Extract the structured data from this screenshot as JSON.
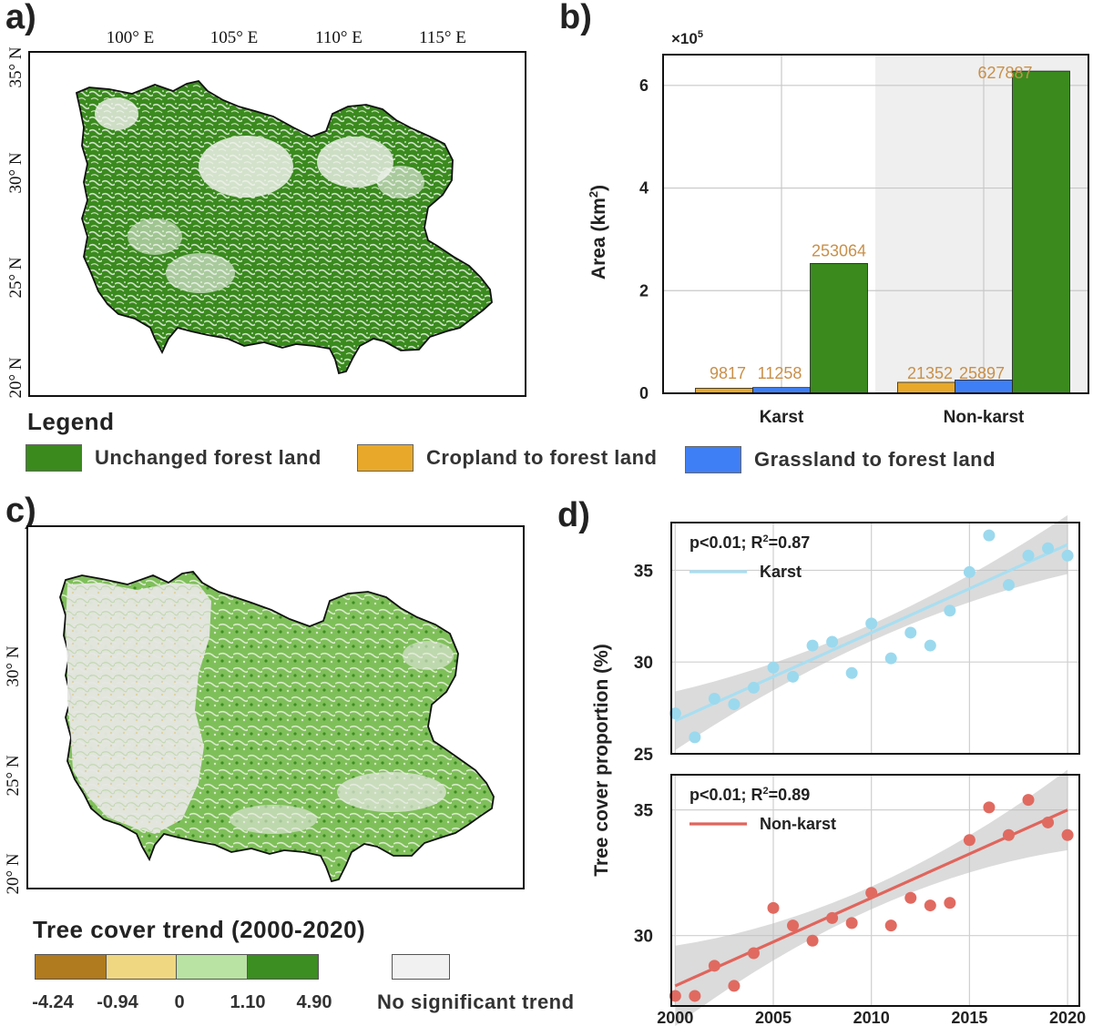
{
  "panels": {
    "a": "a)",
    "b": "b)",
    "c": "c)",
    "d": "d)"
  },
  "maps": {
    "longitudes": [
      "100° E",
      "105° E",
      "110° E",
      "115° E"
    ],
    "map_a_latitudes": [
      "35° N",
      "30° N",
      "25° N",
      "20° N"
    ],
    "map_c_latitudes": [
      "30° N",
      "25° N",
      "20° N"
    ]
  },
  "legend": {
    "title": "Legend",
    "items": [
      {
        "label": "Unchanged forest land",
        "color": "#3a8a1e"
      },
      {
        "label": "Cropland to forest land",
        "color": "#e8a92a"
      },
      {
        "label": "Grassland to forest land",
        "color": "#3f7ff5"
      }
    ]
  },
  "trend_legend": {
    "title": "Tree cover trend (2000-2020)",
    "colors": [
      "#b07a1e",
      "#efd782",
      "#b9e3a2",
      "#3c8d22"
    ],
    "ticks": [
      "-4.24",
      "-0.94",
      "0",
      "1.10",
      "4.90"
    ],
    "nosig_color": "#f1f1f1",
    "nosig_label": "No significant trend"
  },
  "chart_data": [
    {
      "panel": "b",
      "type": "bar",
      "categories": [
        "Karst",
        "Non-karst"
      ],
      "series": [
        {
          "name": "Cropland to forest land",
          "values": [
            9817,
            21352
          ],
          "color": "#e8a92a"
        },
        {
          "name": "Grassland to forest land",
          "values": [
            11258,
            25897
          ],
          "color": "#3f7ff5"
        },
        {
          "name": "Unchanged forest land",
          "values": [
            253064,
            627887
          ],
          "color": "#3a8a1e"
        }
      ],
      "ylabel": "Area (km²)",
      "ylabel_main": "Area (km",
      "ylabel_sup": "2",
      "ylabel_end": ")",
      "y_multiplier": "×10",
      "y_multiplier_exp": "5",
      "yticks": [
        "0",
        "2",
        "4",
        "6"
      ],
      "ylim": [
        0,
        660000
      ],
      "label_color": "#c8904a",
      "grid": true
    },
    {
      "panel": "d",
      "type": "scatter",
      "ylabel": "Tree cover proportion (%)",
      "xticks": [
        "2000",
        "2005",
        "2010",
        "2015",
        "2020"
      ],
      "xlim": [
        1999.8,
        2020.6
      ],
      "grid": true,
      "subplots": [
        {
          "name": "Karst",
          "stats_main": "p<0.01; R",
          "stats_sup": "2",
          "stats_end": "=0.87",
          "color": "#9bd9ee",
          "line_color": "#a9def0",
          "ylim": [
            25,
            37.6
          ],
          "yticks": [
            "25",
            "30",
            "35"
          ],
          "x": [
            2000,
            2001,
            2002,
            2003,
            2004,
            2005,
            2006,
            2007,
            2008,
            2009,
            2010,
            2011,
            2012,
            2013,
            2014,
            2015,
            2016,
            2017,
            2018,
            2019,
            2020
          ],
          "y": [
            27.2,
            25.9,
            28.0,
            27.7,
            28.6,
            29.7,
            29.2,
            30.9,
            31.1,
            29.4,
            32.1,
            30.2,
            31.6,
            30.9,
            32.8,
            34.9,
            36.9,
            34.2,
            35.8,
            36.2,
            35.8
          ],
          "fit": [
            26.8,
            36.4
          ]
        },
        {
          "name": "Non-karst",
          "stats_main": "p<0.01; R",
          "stats_sup": "2",
          "stats_end": "=0.89",
          "color": "#e06a60",
          "line_color": "#e0655c",
          "ylim": [
            27.2,
            36.4
          ],
          "yticks": [
            "30",
            "35"
          ],
          "x": [
            2000,
            2001,
            2002,
            2003,
            2004,
            2005,
            2006,
            2007,
            2008,
            2009,
            2010,
            2011,
            2012,
            2013,
            2014,
            2015,
            2016,
            2017,
            2018,
            2019,
            2020
          ],
          "y": [
            27.6,
            27.6,
            28.8,
            28.0,
            29.3,
            31.1,
            30.4,
            29.8,
            30.7,
            30.5,
            31.7,
            30.4,
            31.5,
            31.2,
            31.3,
            33.8,
            35.1,
            34.0,
            35.4,
            34.5,
            34.0
          ],
          "fit": [
            28.0,
            35.0
          ]
        }
      ]
    }
  ]
}
